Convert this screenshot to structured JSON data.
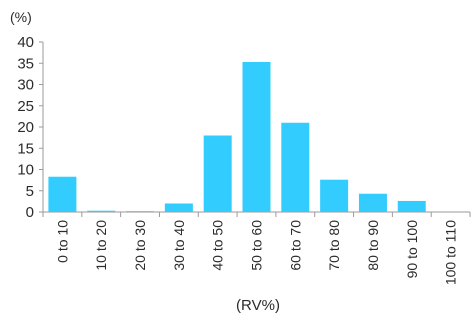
{
  "chart_data": {
    "type": "bar",
    "title": "",
    "xlabel": "(RV%)",
    "ylabel": "(%)",
    "ylim": [
      0,
      40
    ],
    "yticks": [
      0,
      5,
      10,
      15,
      20,
      25,
      30,
      35,
      40
    ],
    "grid": false,
    "legend": "none",
    "categories": [
      "0 to 10",
      "10 to 20",
      "20 to 30",
      "30 to 40",
      "40 to 50",
      "50 to 60",
      "60 to 70",
      "70 to 80",
      "80 to 90",
      "90 to 100",
      "100 to 110"
    ],
    "series": [
      {
        "values": [
          8.3,
          0.3,
          0.2,
          2.0,
          18.0,
          35.3,
          21.0,
          7.6,
          4.3,
          2.6,
          0.0
        ],
        "color": "#33ccff"
      }
    ],
    "colors": {
      "bar": "#33ccff",
      "axis": "#9a9a9a",
      "text": "#2b2b2b",
      "background": "#ffffff"
    }
  }
}
